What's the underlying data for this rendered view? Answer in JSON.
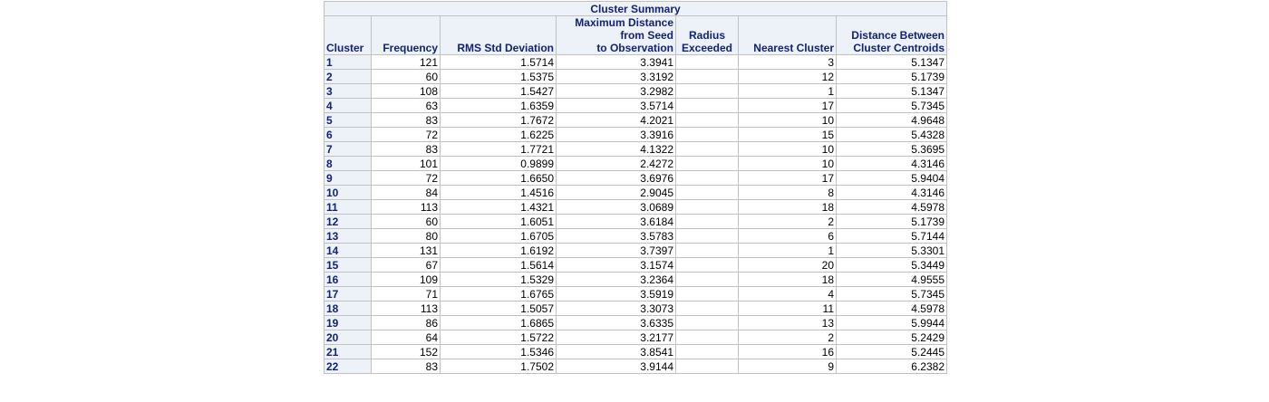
{
  "title": "Cluster Summary",
  "columns": {
    "cluster": "Cluster",
    "frequency": "Frequency",
    "rms": "RMS Std Deviation",
    "maxdist": [
      "Maximum Distance",
      "from Seed",
      "to Observation"
    ],
    "radius": [
      "Radius",
      "Exceeded"
    ],
    "nearest": "Nearest Cluster",
    "centroid": [
      "Distance Between",
      "Cluster Centroids"
    ]
  },
  "rows": [
    {
      "cluster": "1",
      "frequency": "121",
      "rms": "1.5714",
      "maxdist": "3.3941",
      "radius": "",
      "nearest": "3",
      "centroid": "5.1347"
    },
    {
      "cluster": "2",
      "frequency": "60",
      "rms": "1.5375",
      "maxdist": "3.3192",
      "radius": "",
      "nearest": "12",
      "centroid": "5.1739"
    },
    {
      "cluster": "3",
      "frequency": "108",
      "rms": "1.5427",
      "maxdist": "3.2982",
      "radius": "",
      "nearest": "1",
      "centroid": "5.1347"
    },
    {
      "cluster": "4",
      "frequency": "63",
      "rms": "1.6359",
      "maxdist": "3.5714",
      "radius": "",
      "nearest": "17",
      "centroid": "5.7345"
    },
    {
      "cluster": "5",
      "frequency": "83",
      "rms": "1.7672",
      "maxdist": "4.2021",
      "radius": "",
      "nearest": "10",
      "centroid": "4.9648"
    },
    {
      "cluster": "6",
      "frequency": "72",
      "rms": "1.6225",
      "maxdist": "3.3916",
      "radius": "",
      "nearest": "15",
      "centroid": "5.4328"
    },
    {
      "cluster": "7",
      "frequency": "83",
      "rms": "1.7721",
      "maxdist": "4.1322",
      "radius": "",
      "nearest": "10",
      "centroid": "5.3695"
    },
    {
      "cluster": "8",
      "frequency": "101",
      "rms": "0.9899",
      "maxdist": "2.4272",
      "radius": "",
      "nearest": "10",
      "centroid": "4.3146"
    },
    {
      "cluster": "9",
      "frequency": "72",
      "rms": "1.6650",
      "maxdist": "3.6976",
      "radius": "",
      "nearest": "17",
      "centroid": "5.9404"
    },
    {
      "cluster": "10",
      "frequency": "84",
      "rms": "1.4516",
      "maxdist": "2.9045",
      "radius": "",
      "nearest": "8",
      "centroid": "4.3146"
    },
    {
      "cluster": "11",
      "frequency": "113",
      "rms": "1.4321",
      "maxdist": "3.0689",
      "radius": "",
      "nearest": "18",
      "centroid": "4.5978"
    },
    {
      "cluster": "12",
      "frequency": "60",
      "rms": "1.6051",
      "maxdist": "3.6184",
      "radius": "",
      "nearest": "2",
      "centroid": "5.1739"
    },
    {
      "cluster": "13",
      "frequency": "80",
      "rms": "1.6705",
      "maxdist": "3.5783",
      "radius": "",
      "nearest": "6",
      "centroid": "5.7144"
    },
    {
      "cluster": "14",
      "frequency": "131",
      "rms": "1.6192",
      "maxdist": "3.7397",
      "radius": "",
      "nearest": "1",
      "centroid": "5.3301"
    },
    {
      "cluster": "15",
      "frequency": "67",
      "rms": "1.5614",
      "maxdist": "3.1574",
      "radius": "",
      "nearest": "20",
      "centroid": "5.3449"
    },
    {
      "cluster": "16",
      "frequency": "109",
      "rms": "1.5329",
      "maxdist": "3.2364",
      "radius": "",
      "nearest": "18",
      "centroid": "4.9555"
    },
    {
      "cluster": "17",
      "frequency": "71",
      "rms": "1.6765",
      "maxdist": "3.5919",
      "radius": "",
      "nearest": "4",
      "centroid": "5.7345"
    },
    {
      "cluster": "18",
      "frequency": "113",
      "rms": "1.5057",
      "maxdist": "3.3073",
      "radius": "",
      "nearest": "11",
      "centroid": "4.5978"
    },
    {
      "cluster": "19",
      "frequency": "86",
      "rms": "1.6865",
      "maxdist": "3.6335",
      "radius": "",
      "nearest": "13",
      "centroid": "5.9944"
    },
    {
      "cluster": "20",
      "frequency": "64",
      "rms": "1.5722",
      "maxdist": "3.2177",
      "radius": "",
      "nearest": "2",
      "centroid": "5.2429"
    },
    {
      "cluster": "21",
      "frequency": "152",
      "rms": "1.5346",
      "maxdist": "3.8541",
      "radius": "",
      "nearest": "16",
      "centroid": "5.2445"
    },
    {
      "cluster": "22",
      "frequency": "83",
      "rms": "1.7502",
      "maxdist": "3.9144",
      "radius": "",
      "nearest": "9",
      "centroid": "6.2382"
    }
  ]
}
